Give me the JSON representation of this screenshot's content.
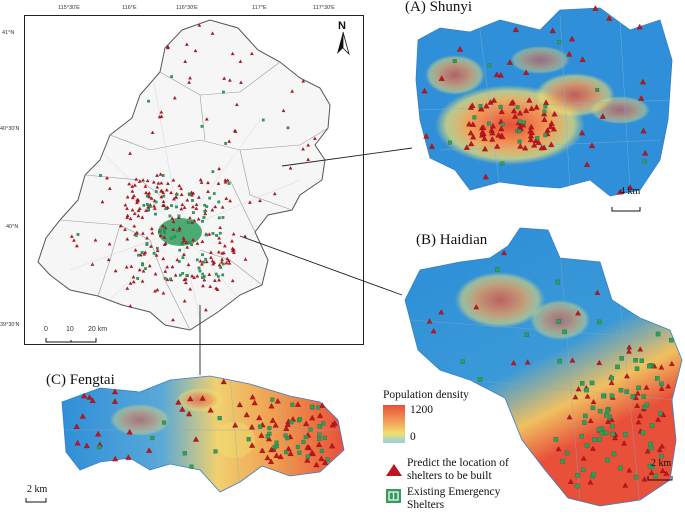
{
  "main_map": {
    "lon_ticks": [
      "115°30'E",
      "116°E",
      "116°30'E",
      "117°E",
      "117°30'E"
    ],
    "lat_ticks": [
      "41°N",
      "40°30'N",
      "40°N",
      "39°30'N"
    ],
    "north_label": "N",
    "scale_ticks": [
      "0",
      "10",
      "20 km"
    ]
  },
  "panels": {
    "shunyi": {
      "title": "(A) Shunyi",
      "scale": "4 km"
    },
    "haidian": {
      "title": "(B) Haidian",
      "scale": "2 km"
    },
    "fengtai": {
      "title": "(C) Fengtai",
      "scale": "2 km"
    }
  },
  "legend": {
    "title": "Population density",
    "max": "1200",
    "min": "0",
    "predicted_label": "Predict the location of shelters to be built",
    "existing_label": "Existing Emergency Shelters"
  },
  "colors": {
    "low_density": "#2f8fd8",
    "mid_density": "#f0e070",
    "high_density": "#e8503a",
    "predicted_marker": "#c0141e",
    "existing_marker": "#2e9e5a"
  }
}
